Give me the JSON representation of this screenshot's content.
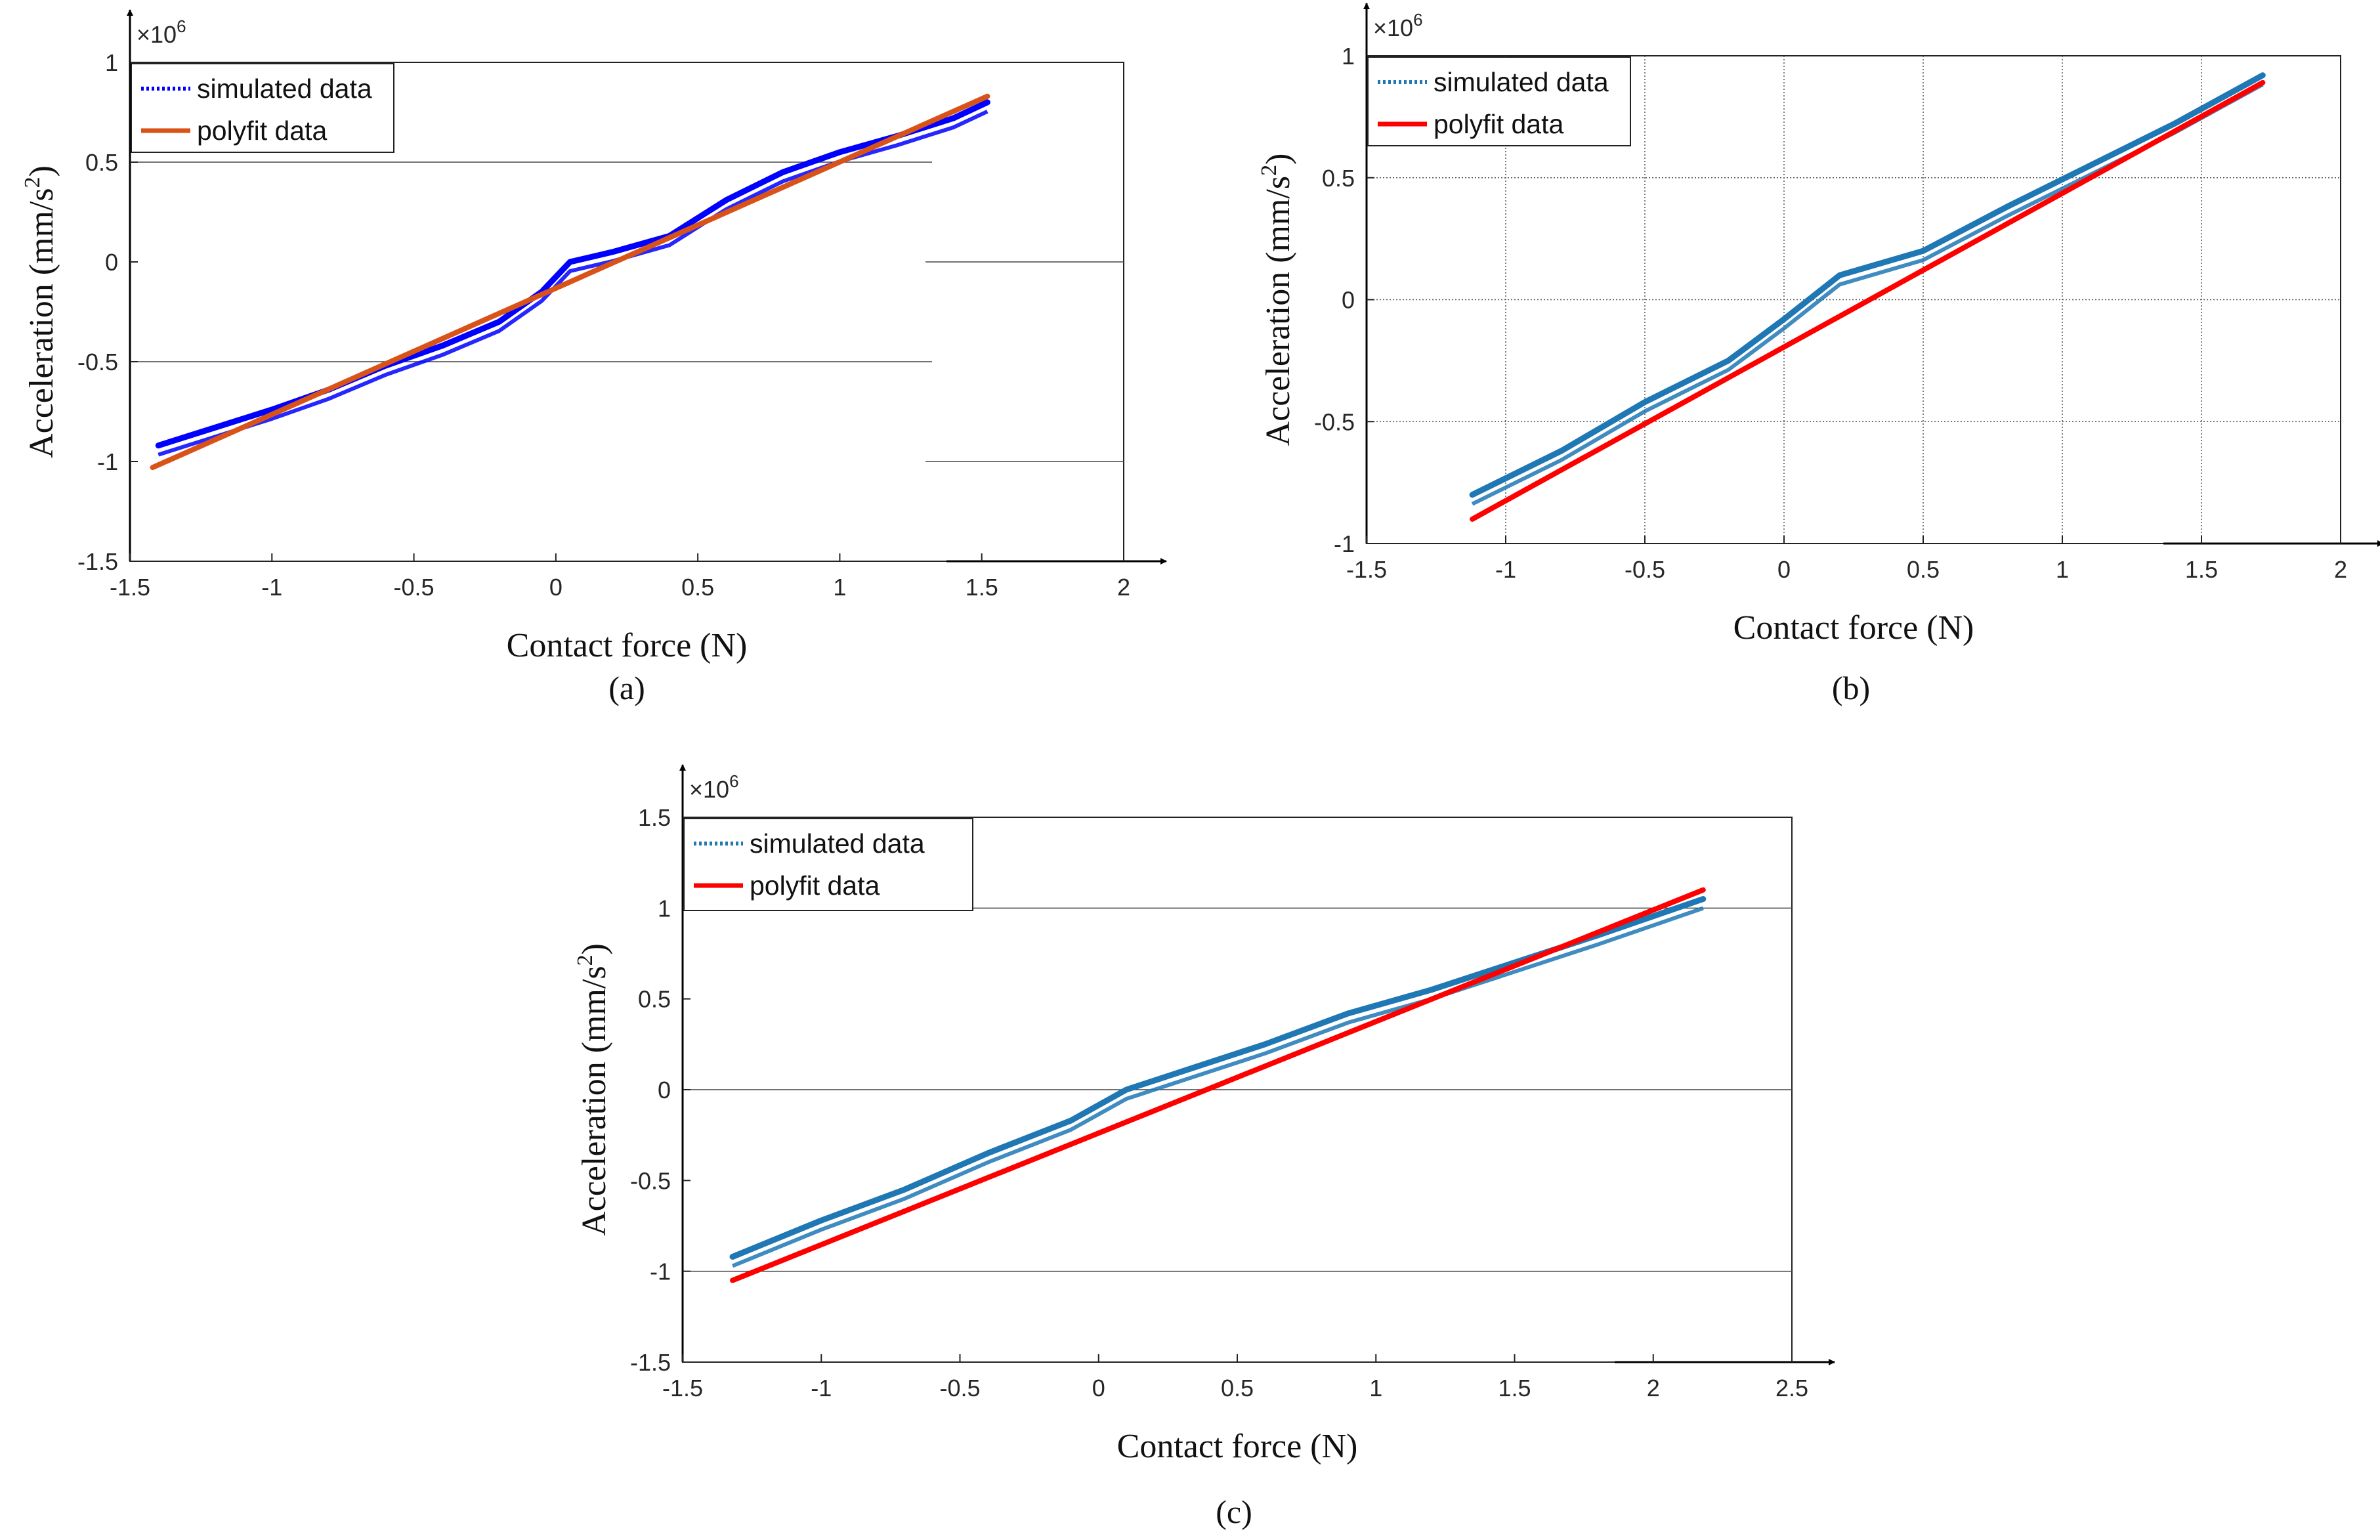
{
  "chart_data": [
    {
      "type": "line",
      "panel": "(a)",
      "xlabel": "Contact force (N)",
      "ylabel": "Acceleration (mm/s2)",
      "y_multiplier": "×10^6",
      "xlim": [
        -1.5,
        2
      ],
      "ylim": [
        -1.5,
        1
      ],
      "xticks": [
        "-1.5",
        "-1",
        "-0.5",
        "0",
        "0.5",
        "1",
        "1.5",
        "2"
      ],
      "yticks": [
        "-1.5",
        "-1",
        "-0.5",
        "0",
        "0.5",
        "1"
      ],
      "grid": "partial horizontal lines",
      "legend": "top-left",
      "series": [
        {
          "name": "simulated data",
          "color": "#0000ff",
          "style": "dotted",
          "x": [
            -1.4,
            -1.2,
            -1.0,
            -0.8,
            -0.6,
            -0.4,
            -0.2,
            -0.05,
            0.05,
            0.2,
            0.4,
            0.6,
            0.8,
            1.0,
            1.2,
            1.4,
            1.52
          ],
          "y": [
            -0.92,
            -0.83,
            -0.74,
            -0.64,
            -0.52,
            -0.42,
            -0.3,
            -0.15,
            0.0,
            0.05,
            0.13,
            0.31,
            0.45,
            0.55,
            0.63,
            0.72,
            0.8
          ]
        },
        {
          "name": "polyfit data",
          "color": "#d95319",
          "style": "solid",
          "x": [
            -1.42,
            1.52
          ],
          "y": [
            -1.03,
            0.83
          ]
        }
      ]
    },
    {
      "type": "line",
      "panel": "(b)",
      "xlabel": "Contact force (N)",
      "ylabel": "Acceleration (mm/s2)",
      "y_multiplier": "×10^6",
      "xlim": [
        -1.5,
        2
      ],
      "ylim": [
        -1,
        1
      ],
      "xticks": [
        "-1.5",
        "-1",
        "-0.5",
        "0",
        "0.5",
        "1",
        "1.5",
        "2"
      ],
      "yticks": [
        "-1",
        "-0.5",
        "0",
        "0.5",
        "1"
      ],
      "grid": "on",
      "legend": "top-left",
      "series": [
        {
          "name": "simulated data",
          "color": "#1f77b4",
          "style": "dotted",
          "x": [
            -1.12,
            -0.8,
            -0.5,
            -0.2,
            0.0,
            0.2,
            0.5,
            0.8,
            1.1,
            1.4,
            1.72
          ],
          "y": [
            -0.8,
            -0.62,
            -0.42,
            -0.25,
            -0.08,
            0.1,
            0.2,
            0.38,
            0.55,
            0.72,
            0.92
          ]
        },
        {
          "name": "polyfit data",
          "color": "#ff0000",
          "style": "solid",
          "x": [
            -1.12,
            1.72
          ],
          "y": [
            -0.9,
            0.89
          ]
        }
      ]
    },
    {
      "type": "line",
      "panel": "(c)",
      "xlabel": "Contact force (N)",
      "ylabel": "Acceleration (mm/s2)",
      "y_multiplier": "×10^6",
      "xlim": [
        -1.5,
        2.5
      ],
      "ylim": [
        -1.5,
        1.5
      ],
      "xticks": [
        "-1.5",
        "-1",
        "-0.5",
        "0",
        "0.5",
        "1",
        "1.5",
        "2",
        "2.5"
      ],
      "yticks": [
        "-1.5",
        "-1",
        "-0.5",
        "0",
        "0.5",
        "1",
        "1.5"
      ],
      "grid": "horizontal",
      "legend": "top-left",
      "series": [
        {
          "name": "simulated data",
          "color": "#1f77b4",
          "style": "dotted",
          "x": [
            -1.32,
            -1.0,
            -0.7,
            -0.4,
            -0.1,
            0.1,
            0.3,
            0.6,
            0.9,
            1.2,
            1.5,
            1.8,
            2.18
          ],
          "y": [
            -0.92,
            -0.72,
            -0.55,
            -0.35,
            -0.17,
            0.0,
            0.1,
            0.25,
            0.42,
            0.55,
            0.7,
            0.85,
            1.05
          ]
        },
        {
          "name": "polyfit data",
          "color": "#ff0000",
          "style": "solid",
          "x": [
            -1.32,
            2.18
          ],
          "y": [
            -1.05,
            1.1
          ]
        }
      ]
    }
  ]
}
